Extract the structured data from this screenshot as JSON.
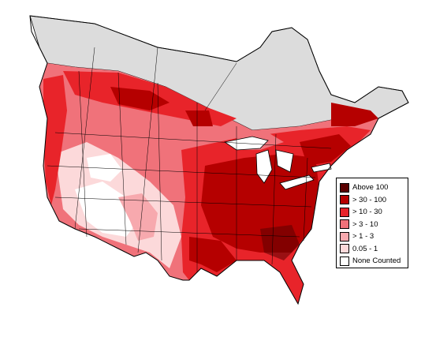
{
  "map": {
    "colors": {
      "no_data_region": "#dcdcdc",
      "boundary": "#000000",
      "background": "#ffffff"
    },
    "bins_visible_order": [
      "Above 100",
      "> 30 - 100",
      "> 10 - 30",
      "> 3 - 10",
      "> 1 - 3",
      "0.05 - 1",
      "None Counted"
    ]
  },
  "legend": {
    "items": [
      {
        "label": "Above 100",
        "color": "#5a0000"
      },
      {
        "label": "> 30 - 100",
        "color": "#b50000"
      },
      {
        "label": "> 10 - 30",
        "color": "#e8242a"
      },
      {
        "label": "> 3 - 10",
        "color": "#f0727a"
      },
      {
        "label": "> 1 - 3",
        "color": "#f7a9ae"
      },
      {
        "label": "0.05 - 1",
        "color": "#fcd9da"
      },
      {
        "label": "None Counted",
        "color": "#ffffff"
      }
    ]
  }
}
